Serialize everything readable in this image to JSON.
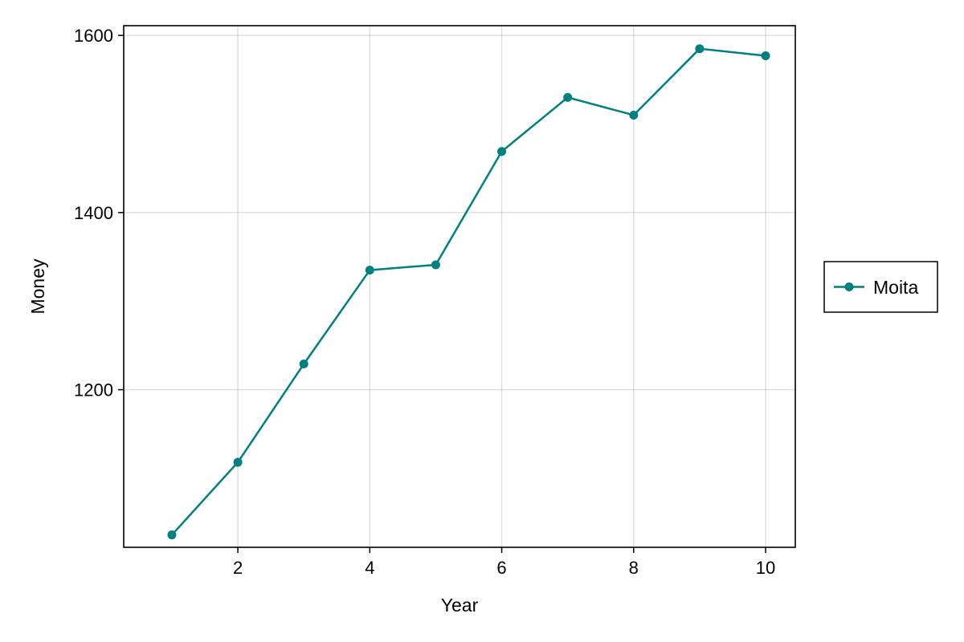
{
  "chart_data": {
    "type": "line",
    "title": "",
    "xlabel": "Year",
    "ylabel": "Money",
    "x": [
      1,
      2,
      3,
      4,
      5,
      6,
      7,
      8,
      9,
      10
    ],
    "series": [
      {
        "name": "Moita",
        "values": [
          1036,
          1118,
          1229,
          1335,
          1341,
          1469,
          1530,
          1510,
          1585,
          1577
        ],
        "color": "#008080"
      }
    ],
    "xlim": [
      0.27,
      10.45
    ],
    "ylim": [
      1022,
      1611
    ],
    "xticks": [
      2,
      4,
      6,
      8,
      10
    ],
    "yticks": [
      1200,
      1400,
      1600
    ],
    "x_tick_labels": [
      "2",
      "4",
      "6",
      "8",
      "10"
    ],
    "y_tick_labels": [
      "1200",
      "1400",
      "1600"
    ],
    "grid": true,
    "legend_position": "right"
  }
}
